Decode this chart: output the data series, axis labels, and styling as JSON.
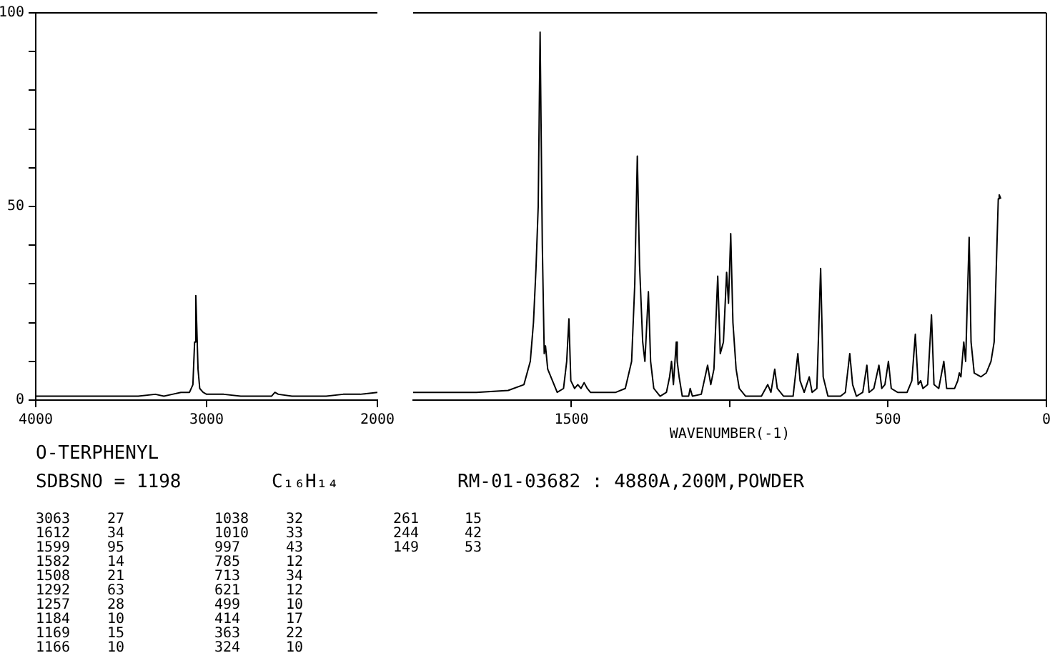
{
  "chart_data": [
    {
      "type": "line",
      "xlim": [
        4000,
        2000
      ],
      "xticks": [
        4000,
        3000,
        2000
      ],
      "ylim": [
        0,
        100
      ],
      "yticks": [
        0,
        {
          "value": 10,
          "label": null
        },
        {
          "value": 20,
          "label": null
        },
        {
          "value": 30,
          "label": null
        },
        {
          "value": 40,
          "label": null
        },
        50,
        {
          "value": 60,
          "label": null
        },
        {
          "value": 70,
          "label": null
        },
        {
          "value": 80,
          "label": null
        },
        {
          "value": 90,
          "label": null
        },
        100
      ],
      "grid": false,
      "legend": false,
      "marker": "none",
      "line_style": "solid",
      "series": [
        {
          "color": "#000000",
          "x": [
            4000,
            3800,
            3600,
            3400,
            3300,
            3250,
            3200,
            3150,
            3100,
            3080,
            3070,
            3063,
            3058,
            3050,
            3040,
            3020,
            3000,
            2900,
            2800,
            2700,
            2620,
            2600,
            2580,
            2500,
            2400,
            2300,
            2200,
            2100,
            2000
          ],
          "values": [
            1,
            1,
            1,
            1,
            1.5,
            1,
            1.5,
            2,
            2,
            4,
            15,
            27,
            20,
            8,
            3,
            2,
            1.5,
            1.5,
            1,
            1,
            1,
            2,
            1.5,
            1,
            1,
            1,
            1.5,
            1.5,
            2
          ]
        }
      ],
      "annotations": [
        "O-TERPHENYL",
        "SDBSNO = 1198",
        "C₁₆H₁₄",
        "RM-01-03682 : 4880A,200M,POWDER",
        "3063 27",
        "1612 34",
        "1599 95",
        "1582 14",
        "1508 21",
        "1292 63",
        "1257 28",
        "1184 10",
        "1169 15",
        "1166 10",
        "1038 32",
        "1010 33",
        "997 43",
        "785 12",
        "713 34",
        "621 12",
        "499 10",
        "414 17",
        "363 22",
        "324 10",
        "261 15",
        "244 42",
        "149 53"
      ]
    },
    {
      "type": "line",
      "xlim": [
        2000,
        0
      ],
      "xticks": [
        1500,
        {
          "value": 1000,
          "label": null
        },
        500,
        0
      ],
      "xlabel": "WAVENUMBER(-1)",
      "ylim": [
        0,
        100
      ],
      "tick_labels": "x",
      "grid": false,
      "legend": false,
      "marker": "none",
      "line_style": "solid",
      "series": [
        {
          "color": "#000000",
          "x": [
            2000,
            1800,
            1700,
            1650,
            1630,
            1620,
            1612,
            1605,
            1599,
            1592,
            1586,
            1582,
            1575,
            1560,
            1545,
            1525,
            1515,
            1508,
            1502,
            1490,
            1480,
            1470,
            1460,
            1450,
            1440,
            1400,
            1360,
            1330,
            1310,
            1300,
            1292,
            1285,
            1275,
            1268,
            1257,
            1250,
            1240,
            1220,
            1200,
            1190,
            1184,
            1178,
            1169,
            1166,
            1160,
            1150,
            1130,
            1125,
            1118,
            1090,
            1070,
            1060,
            1050,
            1038,
            1030,
            1020,
            1010,
            1004,
            997,
            990,
            980,
            970,
            950,
            900,
            880,
            870,
            858,
            850,
            830,
            800,
            785,
            778,
            765,
            749,
            740,
            725,
            713,
            705,
            690,
            650,
            635,
            621,
            612,
            600,
            580,
            567,
            560,
            545,
            529,
            520,
            510,
            499,
            490,
            470,
            440,
            425,
            414,
            405,
            397,
            390,
            375,
            363,
            355,
            340,
            324,
            315,
            290,
            280,
            275,
            270,
            261,
            255,
            250,
            244,
            238,
            228,
            207,
            190,
            175,
            165,
            158,
            152,
            149,
            144
          ],
          "values": [
            2,
            2,
            2.5,
            4,
            10,
            20,
            34,
            50,
            95,
            40,
            12,
            14,
            8,
            5,
            2,
            3,
            10,
            21,
            5,
            3,
            4,
            3,
            4.5,
            3,
            2,
            2,
            2,
            3,
            10,
            30,
            63,
            35,
            15,
            10,
            28,
            10,
            3,
            1,
            2,
            6,
            10,
            4,
            15,
            10,
            6,
            1,
            1,
            3,
            1,
            1.5,
            9,
            4,
            8,
            32,
            12,
            15,
            33,
            25,
            43,
            20,
            8,
            3,
            1,
            1,
            4,
            2,
            8,
            3,
            1,
            1,
            12,
            5,
            2,
            6,
            2,
            3,
            34,
            6,
            1,
            1,
            2,
            12,
            4,
            1,
            2,
            9,
            2,
            3,
            9,
            3,
            4,
            10,
            3,
            2,
            2,
            5,
            17,
            4,
            5,
            3,
            4,
            22,
            4,
            3,
            10,
            3,
            3,
            5,
            7,
            6,
            15,
            10,
            25,
            42,
            15,
            7,
            6,
            7,
            10,
            15,
            35,
            52,
            53,
            52
          ]
        }
      ]
    }
  ]
}
